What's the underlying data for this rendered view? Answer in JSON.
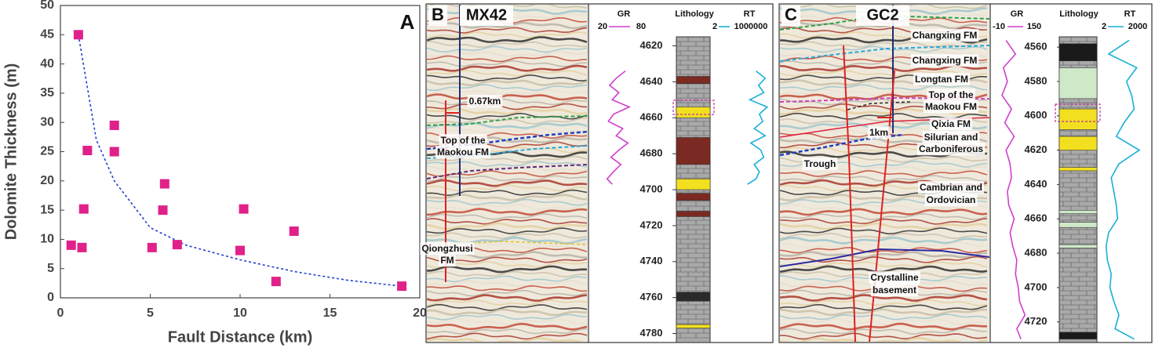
{
  "chart_data": [
    {
      "type": "scatter",
      "panel": "A",
      "x_label": "Fault Distance  (km)",
      "y_label": "Dolomite Thickness (m)",
      "x": [
        1,
        3,
        1.5,
        3,
        5.8,
        1.3,
        5.7,
        10.2,
        13,
        0.6,
        1.2,
        5.1,
        6.5,
        10,
        12,
        19
      ],
      "values": [
        45,
        29.5,
        25.2,
        25,
        19.5,
        15.2,
        15,
        15.2,
        11.4,
        9,
        8.6,
        8.6,
        9.1,
        8.1,
        2.8,
        2
      ],
      "color": "#e0218a",
      "trend": {
        "x": [
          1,
          2,
          3,
          5,
          7,
          10,
          13,
          16,
          19
        ],
        "values": [
          45,
          27,
          20,
          12,
          9,
          6.5,
          4.5,
          3,
          2
        ],
        "color": "#1f3fd0"
      },
      "xlim": [
        0,
        20
      ],
      "ylim": [
        0,
        50
      ],
      "xticks": [
        0,
        5,
        10,
        15,
        20
      ],
      "yticks": [
        0,
        5,
        10,
        15,
        20,
        25,
        30,
        35,
        40,
        45,
        50
      ]
    },
    {
      "type": "well-log",
      "panel": "B",
      "well": "MX42",
      "lithology_title": "Lithology",
      "ylim": [
        4615,
        4785
      ],
      "yticks": [
        4620,
        4640,
        4660,
        4680,
        4700,
        4720,
        4740,
        4760,
        4780
      ],
      "series": [
        {
          "name": "GR",
          "color": "#d03fd0",
          "xlim": [
            20,
            80
          ],
          "depth": [
            4634,
            4638,
            4642,
            4646,
            4650,
            4654,
            4658,
            4662,
            4666,
            4670,
            4674,
            4678,
            4682,
            4686,
            4690,
            4694,
            4697
          ],
          "values": [
            62,
            48,
            38,
            52,
            42,
            68,
            44,
            36,
            58,
            48,
            66,
            52,
            40,
            55,
            44,
            34,
            42
          ]
        },
        {
          "name": "RT",
          "color": "#1ab0d8",
          "xlim": [
            2,
            1000000
          ],
          "log": true,
          "depth": [
            4634,
            4638,
            4642,
            4646,
            4650,
            4654,
            4658,
            4662,
            4666,
            4670,
            4674,
            4678,
            4682,
            4686,
            4690,
            4694,
            4697
          ],
          "values": [
            30000,
            200000,
            50000,
            150000,
            8000,
            300000,
            60000,
            120000,
            20000,
            200000,
            10000,
            80000,
            150000,
            20000,
            60000,
            30000,
            5000
          ]
        }
      ],
      "lithology": [
        {
          "top": 4637,
          "bottom": 4641,
          "color": "#7a2a22"
        },
        {
          "top": 4654,
          "bottom": 4660,
          "color": "#f2e020"
        },
        {
          "top": 4671,
          "bottom": 4686,
          "color": "#7a2a22"
        },
        {
          "top": 4694,
          "bottom": 4700,
          "color": "#f2e020"
        },
        {
          "top": 4702,
          "bottom": 4706,
          "color": "#7a2a22"
        },
        {
          "top": 4712,
          "bottom": 4715,
          "color": "#7a2a22"
        },
        {
          "top": 4757,
          "bottom": 4762,
          "color": "#2a2a2a"
        },
        {
          "top": 4775,
          "bottom": 4777,
          "color": "#f2e020"
        }
      ],
      "annotations": [
        "0.67km",
        "Top of the",
        "Maokou FM",
        "Qiongzhusi",
        "FM"
      ]
    },
    {
      "type": "well-log",
      "panel": "C",
      "well": "GC2",
      "lithology_title": "Lithology",
      "ylim": [
        4554,
        4732
      ],
      "yticks": [
        4560,
        4580,
        4600,
        4620,
        4640,
        4660,
        4680,
        4700,
        4720
      ],
      "series": [
        {
          "name": "GR",
          "color": "#d03fd0",
          "xlim": [
            -10,
            150
          ],
          "depth": [
            4556,
            4564,
            4572,
            4580,
            4588,
            4596,
            4604,
            4612,
            4620,
            4628,
            4636,
            4644,
            4652,
            4660,
            4668,
            4676,
            4684,
            4692,
            4700,
            4708,
            4716,
            4724,
            4730
          ],
          "values": [
            40,
            75,
            30,
            45,
            25,
            60,
            35,
            70,
            40,
            55,
            60,
            45,
            50,
            70,
            55,
            65,
            80,
            75,
            85,
            90,
            110,
            80,
            95
          ]
        },
        {
          "name": "RT",
          "color": "#1ab0d8",
          "xlim": [
            2,
            2000
          ],
          "depth": [
            4556,
            4564,
            4572,
            4580,
            4588,
            4596,
            4604,
            4612,
            4620,
            4628,
            4636,
            4644,
            4652,
            4660,
            4668,
            4676,
            4684,
            4692,
            4700,
            4708,
            4716,
            4724,
            4730
          ],
          "values": [
            1200,
            400,
            1500,
            1100,
            1300,
            1400,
            1000,
            700,
            1600,
            800,
            500,
            600,
            700,
            750,
            400,
            300,
            350,
            500,
            450,
            600,
            800,
            650,
            1400
          ]
        }
      ],
      "lithology": [
        {
          "top": 4558,
          "bottom": 4568,
          "color": "#1a1a1a"
        },
        {
          "top": 4572,
          "bottom": 4590,
          "color": "#cfe8c8"
        },
        {
          "top": 4596,
          "bottom": 4608,
          "color": "#f2e020"
        },
        {
          "top": 4612,
          "bottom": 4620,
          "color": "#f2e020"
        },
        {
          "top": 4630,
          "bottom": 4632,
          "color": "#f2e020"
        },
        {
          "top": 4655,
          "bottom": 4657,
          "color": "#cfe8c8"
        },
        {
          "top": 4662,
          "bottom": 4665,
          "color": "#cfe8c8"
        },
        {
          "top": 4675,
          "bottom": 4677,
          "color": "#cfe8c8"
        },
        {
          "top": 4726,
          "bottom": 4730,
          "color": "#1a1a1a"
        }
      ],
      "annotations": [
        "Changxing FM",
        "Changxing FM",
        "Longtan FM",
        "Top of the",
        "Maokou FM",
        "Qixia FM",
        "1km",
        "Silurian and",
        "Carboniferous",
        "Trough",
        "Cambrian and",
        "Ordovician",
        "Crystalline",
        "basement"
      ]
    }
  ]
}
